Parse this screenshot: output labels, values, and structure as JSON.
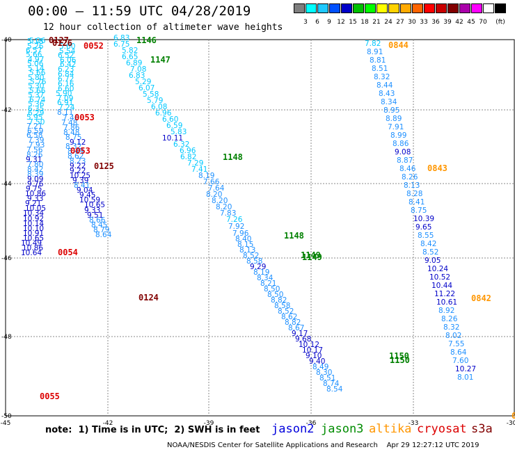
{
  "header": {
    "title": "00:00 – 11:59 UTC 04/28/2019",
    "subtitle": "12 hour collection of altimeter wave heights"
  },
  "colorbar": {
    "colors": [
      "#7f7f7f",
      "#00ffff",
      "#1ec8ff",
      "#0050ff",
      "#0000c8",
      "#00c000",
      "#00ff00",
      "#ffff00",
      "#ffd200",
      "#ffaa00",
      "#ff6400",
      "#ff0000",
      "#c80000",
      "#820000",
      "#aa00aa",
      "#ff00ff",
      "#ffffff",
      "#000000"
    ],
    "labels": [
      "3",
      "6",
      "9",
      "12",
      "15",
      "18",
      "21",
      "24",
      "27",
      "30",
      "33",
      "36",
      "39",
      "42",
      "45",
      "70",
      "(ft)"
    ]
  },
  "axes": {
    "lat_labels": [
      "-40",
      "-42",
      "-44",
      "-46",
      "-48",
      "-50"
    ],
    "lon_labels": [
      "-45",
      "-42",
      "-39",
      "-36",
      "-33",
      "-30"
    ]
  },
  "tracks": [
    {
      "id": "west1",
      "color_key": "mixed",
      "points": [
        {
          "v": "5.26",
          "c": "#00c8ff"
        },
        {
          "v": "5.18",
          "c": "#00c8ff"
        },
        {
          "v": "5.26",
          "c": "#00c8ff"
        },
        {
          "v": "6.57",
          "c": "#00c8ff"
        },
        {
          "v": "5.66",
          "c": "#00c8ff"
        },
        {
          "v": "4.97",
          "c": "#00c8ff"
        },
        {
          "v": "5.06",
          "c": "#00c8ff"
        },
        {
          "v": "5.14",
          "c": "#00c8ff"
        },
        {
          "v": "5.66",
          "c": "#00c8ff"
        },
        {
          "v": "5.80",
          "c": "#00c8ff"
        },
        {
          "v": "5.76",
          "c": "#00c8ff"
        },
        {
          "v": "5.30",
          "c": "#00c8ff"
        },
        {
          "v": "5.66",
          "c": "#00c8ff"
        },
        {
          "v": "5.37",
          "c": "#00c8ff"
        },
        {
          "v": "6.74",
          "c": "#00c8ff"
        },
        {
          "v": "5.36",
          "c": "#00c8ff"
        },
        {
          "v": "6.35",
          "c": "#00c8ff"
        },
        {
          "v": "6.29",
          "c": "#00c8ff"
        },
        {
          "v": "5.95",
          "c": "#00c8ff"
        },
        {
          "v": "7.50",
          "c": "#00c8ff"
        },
        {
          "v": "7.21",
          "c": "#1e90ff"
        },
        {
          "v": "6.59",
          "c": "#1e90ff"
        },
        {
          "v": "6.58",
          "c": "#1e90ff"
        },
        {
          "v": "7.39",
          "c": "#1e90ff"
        },
        {
          "v": "7.93",
          "c": "#1e90ff"
        },
        {
          "v": "7.56",
          "c": "#1e90ff"
        },
        {
          "v": "8.26",
          "c": "#1e90ff"
        },
        {
          "v": "9.31",
          "c": "#0000c8"
        },
        {
          "v": "7.80",
          "c": "#1e90ff"
        },
        {
          "v": "8.42",
          "c": "#1e90ff"
        },
        {
          "v": "8.39",
          "c": "#1e90ff"
        },
        {
          "v": "9.09",
          "c": "#0000c8"
        },
        {
          "v": "9.76",
          "c": "#0000c8"
        },
        {
          "v": "9.75",
          "c": "#0000c8"
        },
        {
          "v": "10.86",
          "c": "#0000c8"
        },
        {
          "v": "9.33",
          "c": "#0000c8"
        },
        {
          "v": "9.21",
          "c": "#0000c8"
        },
        {
          "v": "10.05",
          "c": "#0000c8"
        },
        {
          "v": "10.34",
          "c": "#0000c8"
        },
        {
          "v": "10.92",
          "c": "#0000c8"
        },
        {
          "v": "10.14",
          "c": "#0000c8"
        },
        {
          "v": "10.10",
          "c": "#0000c8"
        },
        {
          "v": "10.91",
          "c": "#0000c8"
        },
        {
          "v": "10.65",
          "c": "#0000c8"
        },
        {
          "v": "10.49",
          "c": "#0000c8"
        },
        {
          "v": "10.86",
          "c": "#0000c8"
        },
        {
          "v": "10.64",
          "c": "#0000c8"
        }
      ]
    },
    {
      "id": "west2",
      "color_key": "mixed",
      "points": [
        {
          "v": "5.60",
          "c": "#00c8ff"
        },
        {
          "v": "5.54",
          "c": "#00c8ff"
        },
        {
          "v": "6.52",
          "c": "#00c8ff"
        },
        {
          "v": "6.06",
          "c": "#00c8ff"
        },
        {
          "v": "6.42",
          "c": "#00c8ff"
        },
        {
          "v": "6.23",
          "c": "#00c8ff"
        },
        {
          "v": "6.84",
          "c": "#00c8ff"
        },
        {
          "v": "6.72",
          "c": "#00c8ff"
        },
        {
          "v": "6.16",
          "c": "#00c8ff"
        },
        {
          "v": "6.60",
          "c": "#00c8ff"
        },
        {
          "v": "5.90",
          "c": "#00c8ff"
        },
        {
          "v": "7.09",
          "c": "#00c8ff"
        },
        {
          "v": "6.91",
          "c": "#00c8ff"
        },
        {
          "v": "7.24",
          "c": "#00c8ff"
        },
        {
          "v": "8.11",
          "c": "#1e90ff"
        },
        {
          "v": "7.46",
          "c": "#1e90ff"
        },
        {
          "v": "7.48",
          "c": "#1e90ff"
        },
        {
          "v": "7.86",
          "c": "#1e90ff"
        },
        {
          "v": "8.48",
          "c": "#1e90ff"
        },
        {
          "v": "8.75",
          "c": "#1e90ff"
        },
        {
          "v": "9.12",
          "c": "#0000c8"
        },
        {
          "v": "8.32",
          "c": "#1e90ff"
        },
        {
          "v": "8.49",
          "c": "#1e90ff"
        },
        {
          "v": "8.62",
          "c": "#1e90ff"
        },
        {
          "v": "8.23",
          "c": "#1e90ff"
        },
        {
          "v": "9.22",
          "c": "#0000c8"
        },
        {
          "v": "9.22",
          "c": "#0000c8"
        },
        {
          "v": "10.25",
          "c": "#0000c8"
        },
        {
          "v": "9.39",
          "c": "#0000c8"
        },
        {
          "v": "8.41",
          "c": "#1e90ff"
        },
        {
          "v": "9.04",
          "c": "#0000c8"
        },
        {
          "v": "9.45",
          "c": "#0000c8"
        },
        {
          "v": "10.59",
          "c": "#0000c8"
        },
        {
          "v": "10.65",
          "c": "#0000c8"
        },
        {
          "v": "9.33",
          "c": "#0000c8"
        },
        {
          "v": "9.51",
          "c": "#0000c8"
        },
        {
          "v": "8.66",
          "c": "#1e90ff"
        },
        {
          "v": "8.45",
          "c": "#1e90ff"
        },
        {
          "v": "8.79",
          "c": "#1e90ff"
        },
        {
          "v": "8.64",
          "c": "#1e90ff"
        }
      ]
    },
    {
      "id": "diag",
      "color_key": "mixed",
      "points": [
        {
          "v": "6.83",
          "c": "#00c8ff"
        },
        {
          "v": "6.75",
          "c": "#00c8ff"
        },
        {
          "v": "5.82",
          "c": "#00c8ff"
        },
        {
          "v": "6.65",
          "c": "#00c8ff"
        },
        {
          "v": "6.89",
          "c": "#00c8ff"
        },
        {
          "v": "7.08",
          "c": "#00c8ff"
        },
        {
          "v": "6.83",
          "c": "#00c8ff"
        },
        {
          "v": "5.29",
          "c": "#00c8ff"
        },
        {
          "v": "6.07",
          "c": "#00c8ff"
        },
        {
          "v": "5.58",
          "c": "#00c8ff"
        },
        {
          "v": "5.79",
          "c": "#00c8ff"
        },
        {
          "v": "6.08",
          "c": "#00c8ff"
        },
        {
          "v": "6.96",
          "c": "#00c8ff"
        },
        {
          "v": "6.60",
          "c": "#00c8ff"
        },
        {
          "v": "6.59",
          "c": "#00c8ff"
        },
        {
          "v": "5.83",
          "c": "#00c8ff"
        },
        {
          "v": "10.11",
          "c": "#0000c8"
        },
        {
          "v": "6.32",
          "c": "#00c8ff"
        },
        {
          "v": "6.96",
          "c": "#00c8ff"
        },
        {
          "v": "6.82",
          "c": "#00c8ff"
        },
        {
          "v": "7.29",
          "c": "#00c8ff"
        },
        {
          "v": "7.41",
          "c": "#00c8ff"
        },
        {
          "v": "8.19",
          "c": "#1e90ff"
        },
        {
          "v": "7.66",
          "c": "#1e90ff"
        },
        {
          "v": "7.64",
          "c": "#1e90ff"
        },
        {
          "v": "8.20",
          "c": "#1e90ff"
        },
        {
          "v": "8.20",
          "c": "#1e90ff"
        },
        {
          "v": "8.20",
          "c": "#1e90ff"
        },
        {
          "v": "7.83",
          "c": "#1e90ff"
        },
        {
          "v": "7.26",
          "c": "#00c8ff"
        },
        {
          "v": "7.92",
          "c": "#1e90ff"
        },
        {
          "v": "7.96",
          "c": "#1e90ff"
        },
        {
          "v": "8.40",
          "c": "#1e90ff"
        },
        {
          "v": "8.15",
          "c": "#1e90ff"
        },
        {
          "v": "8.13",
          "c": "#1e90ff"
        },
        {
          "v": "8.52",
          "c": "#1e90ff"
        },
        {
          "v": "8.58",
          "c": "#1e90ff"
        },
        {
          "v": "9.29",
          "c": "#0000c8"
        },
        {
          "v": "8.19",
          "c": "#1e90ff"
        },
        {
          "v": "8.34",
          "c": "#1e90ff"
        },
        {
          "v": "8.21",
          "c": "#1e90ff"
        },
        {
          "v": "8.50",
          "c": "#1e90ff"
        },
        {
          "v": "8.50",
          "c": "#1e90ff"
        },
        {
          "v": "8.82",
          "c": "#1e90ff"
        },
        {
          "v": "8.58",
          "c": "#1e90ff"
        },
        {
          "v": "8.52",
          "c": "#1e90ff"
        },
        {
          "v": "8.62",
          "c": "#1e90ff"
        },
        {
          "v": "8.82",
          "c": "#1e90ff"
        },
        {
          "v": "8.67",
          "c": "#1e90ff"
        },
        {
          "v": "9.17",
          "c": "#0000c8"
        },
        {
          "v": "9.68",
          "c": "#0000c8"
        },
        {
          "v": "10.12",
          "c": "#0000c8"
        },
        {
          "v": "10.17",
          "c": "#0000c8"
        },
        {
          "v": "9.10",
          "c": "#0000c8"
        },
        {
          "v": "9.40",
          "c": "#0000c8"
        },
        {
          "v": "8.49",
          "c": "#1e90ff"
        },
        {
          "v": "8.30",
          "c": "#1e90ff"
        },
        {
          "v": "8.51",
          "c": "#1e90ff"
        },
        {
          "v": "8.74",
          "c": "#1e90ff"
        },
        {
          "v": "8.54",
          "c": "#1e90ff"
        }
      ]
    },
    {
      "id": "east",
      "color_key": "mixed",
      "points": [
        {
          "v": "7.82",
          "c": "#00c8ff"
        },
        {
          "v": "8.91",
          "c": "#1e90ff"
        },
        {
          "v": "8.81",
          "c": "#1e90ff"
        },
        {
          "v": "8.51",
          "c": "#1e90ff"
        },
        {
          "v": "8.32",
          "c": "#1e90ff"
        },
        {
          "v": "8.44",
          "c": "#1e90ff"
        },
        {
          "v": "8.43",
          "c": "#1e90ff"
        },
        {
          "v": "8.34",
          "c": "#1e90ff"
        },
        {
          "v": "8.95",
          "c": "#1e90ff"
        },
        {
          "v": "8.89",
          "c": "#1e90ff"
        },
        {
          "v": "7.91",
          "c": "#1e90ff"
        },
        {
          "v": "8.99",
          "c": "#1e90ff"
        },
        {
          "v": "8.86",
          "c": "#1e90ff"
        },
        {
          "v": "9.08",
          "c": "#0000c8"
        },
        {
          "v": "8.87",
          "c": "#1e90ff"
        },
        {
          "v": "8.46",
          "c": "#1e90ff"
        },
        {
          "v": "8.26",
          "c": "#1e90ff"
        },
        {
          "v": "8.13",
          "c": "#1e90ff"
        },
        {
          "v": "8.28",
          "c": "#1e90ff"
        },
        {
          "v": "8.41",
          "c": "#1e90ff"
        },
        {
          "v": "8.75",
          "c": "#1e90ff"
        },
        {
          "v": "10.39",
          "c": "#0000c8"
        },
        {
          "v": "9.65",
          "c": "#0000c8"
        },
        {
          "v": "8.55",
          "c": "#1e90ff"
        },
        {
          "v": "8.42",
          "c": "#1e90ff"
        },
        {
          "v": "8.52",
          "c": "#1e90ff"
        },
        {
          "v": "9.05",
          "c": "#0000c8"
        },
        {
          "v": "10.24",
          "c": "#0000c8"
        },
        {
          "v": "10.52",
          "c": "#0000c8"
        },
        {
          "v": "10.44",
          "c": "#0000c8"
        },
        {
          "v": "11.22",
          "c": "#0000c8"
        },
        {
          "v": "10.61",
          "c": "#0000c8"
        },
        {
          "v": "8.92",
          "c": "#1e90ff"
        },
        {
          "v": "8.26",
          "c": "#1e90ff"
        },
        {
          "v": "8.32",
          "c": "#1e90ff"
        },
        {
          "v": "8.02",
          "c": "#1e90ff"
        },
        {
          "v": "7.55",
          "c": "#1e90ff"
        },
        {
          "v": "8.64",
          "c": "#1e90ff"
        },
        {
          "v": "7.60",
          "c": "#1e90ff"
        },
        {
          "v": "10.27",
          "c": "#0000c8"
        },
        {
          "v": "8.01",
          "c": "#1e90ff"
        }
      ]
    }
  ],
  "pass_labels": [
    {
      "t": "0127",
      "c": "#820000"
    },
    {
      "t": "0126",
      "c": "#820000"
    },
    {
      "t": "0052",
      "c": "#dc0000"
    },
    {
      "t": "1146",
      "c": "#008000"
    },
    {
      "t": "1147",
      "c": "#008000"
    },
    {
      "t": "0053",
      "c": "#dc0000"
    },
    {
      "t": "0053",
      "c": "#dc0000"
    },
    {
      "t": "0125",
      "c": "#820000"
    },
    {
      "t": "1148",
      "c": "#008000"
    },
    {
      "t": "0054",
      "c": "#dc0000"
    },
    {
      "t": "1148",
      "c": "#008000"
    },
    {
      "t": "1149",
      "c": "#008000"
    },
    {
      "t": "1149",
      "c": "#008000"
    },
    {
      "t": "0124",
      "c": "#820000"
    },
    {
      "t": "0844",
      "c": "#ff9600"
    },
    {
      "t": "0843",
      "c": "#ff9600"
    },
    {
      "t": "0842",
      "c": "#ff9600"
    },
    {
      "t": "1150",
      "c": "#008000"
    },
    {
      "t": "1150",
      "c": "#008000"
    },
    {
      "t": "0055",
      "c": "#dc0000"
    },
    {
      "t": "0",
      "c": "#ff9600"
    }
  ],
  "footer": {
    "note": "note:  1) Time is in UTC;  2) SWH is in feet",
    "satellites": [
      {
        "name": "jason2",
        "color": "#0000dc"
      },
      {
        "name": "jason3",
        "color": "#008c00"
      },
      {
        "name": "altika",
        "color": "#ff9600"
      },
      {
        "name": "cryosat",
        "color": "#dc0000"
      },
      {
        "name": "s3a",
        "color": "#820000"
      }
    ],
    "credit": "NOAA/NESDIS Center for Satellite Applications and Research    Apr 29 12:27:12 UTC 2019"
  }
}
